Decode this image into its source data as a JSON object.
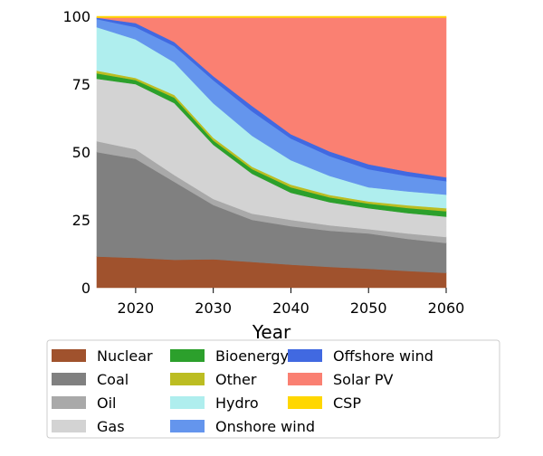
{
  "chart_data": {
    "type": "area",
    "stacked": true,
    "title": "",
    "xlabel": "Year",
    "ylabel": "",
    "xlim": [
      2015,
      2060
    ],
    "ylim": [
      0,
      100
    ],
    "xticks": [
      2020,
      2030,
      2040,
      2050,
      2060
    ],
    "yticks": [
      0,
      25,
      50,
      75,
      100
    ],
    "grid": false,
    "legend_placement": "bottom",
    "x": [
      2015,
      2020,
      2025,
      2030,
      2035,
      2040,
      2045,
      2050,
      2055,
      2060
    ],
    "series": [
      {
        "name": "Nuclear",
        "color": "#a0522d",
        "values": [
          11.5,
          11,
          10.3,
          10.5,
          9.5,
          8.5,
          7.7,
          7,
          6.2,
          5.5
        ]
      },
      {
        "name": "Coal",
        "color": "#808080",
        "values": [
          38.5,
          36.5,
          28.7,
          20,
          15.5,
          14.2,
          13.3,
          13,
          11.8,
          11
        ]
      },
      {
        "name": "Oil",
        "color": "#a9a9a9",
        "values": [
          4,
          3.5,
          2.5,
          2.2,
          2.3,
          2.3,
          2,
          1.6,
          2,
          2.2
        ]
      },
      {
        "name": "Gas",
        "color": "#d3d3d3",
        "values": [
          23,
          24,
          26.5,
          20,
          14.7,
          10,
          8.5,
          7.7,
          7.5,
          7.5
        ]
      },
      {
        "name": "Bioenergy",
        "color": "#2ca02c",
        "values": [
          2,
          1.5,
          2,
          1.6,
          1.7,
          2,
          1.8,
          1.7,
          1.9,
          2
        ]
      },
      {
        "name": "Other",
        "color": "#bcbd22",
        "values": [
          1,
          0.8,
          1,
          1,
          0.9,
          1,
          0.9,
          0.8,
          1,
          1.1
        ]
      },
      {
        "name": "Hydro",
        "color": "#afeeee",
        "values": [
          16,
          14.2,
          12,
          12.7,
          11.4,
          9,
          7,
          5.2,
          5.1,
          5
        ]
      },
      {
        "name": "Onshore wind",
        "color": "#6495ed",
        "values": [
          3,
          4.5,
          6,
          8.5,
          9,
          8,
          7.3,
          6.7,
          5.7,
          5
        ]
      },
      {
        "name": "Offshore wind",
        "color": "#4169e1",
        "values": [
          0.5,
          1.5,
          1.5,
          1.5,
          2,
          1.6,
          1.7,
          1.8,
          1.6,
          1.4
        ]
      },
      {
        "name": "Solar PV",
        "color": "#fa8072",
        "values": [
          0,
          2,
          9,
          21.5,
          32.5,
          42.9,
          49.3,
          54,
          56.7,
          58.8
        ]
      },
      {
        "name": "CSP",
        "color": "#ffd700",
        "values": [
          0.5,
          0.5,
          0.5,
          0.5,
          0.5,
          0.5,
          0.5,
          0.5,
          0.5,
          0.5
        ]
      }
    ]
  }
}
